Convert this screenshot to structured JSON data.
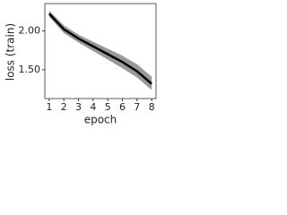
{
  "chart_data": {
    "type": "line",
    "x": [
      1,
      2,
      3,
      4,
      5,
      6,
      7,
      8
    ],
    "values": [
      2.22,
      2.02,
      1.9,
      1.8,
      1.7,
      1.6,
      1.48,
      1.32
    ],
    "band": {
      "lower": [
        2.18,
        1.97,
        1.85,
        1.74,
        1.63,
        1.52,
        1.4,
        1.24
      ],
      "upper": [
        2.26,
        2.07,
        1.95,
        1.86,
        1.77,
        1.68,
        1.57,
        1.41
      ]
    },
    "color": "#000000",
    "band_color": "#999999",
    "xlabel": "epoch",
    "ylabel": "loss (train)",
    "xlim": [
      0.7,
      8.3
    ],
    "ylim": [
      1.13,
      2.35
    ],
    "xticks": [
      1,
      2,
      3,
      4,
      5,
      6,
      7,
      8
    ],
    "yticks": [
      {
        "value": 1.5,
        "label": "1.50"
      },
      {
        "value": 2,
        "label": "2.00"
      }
    ]
  }
}
